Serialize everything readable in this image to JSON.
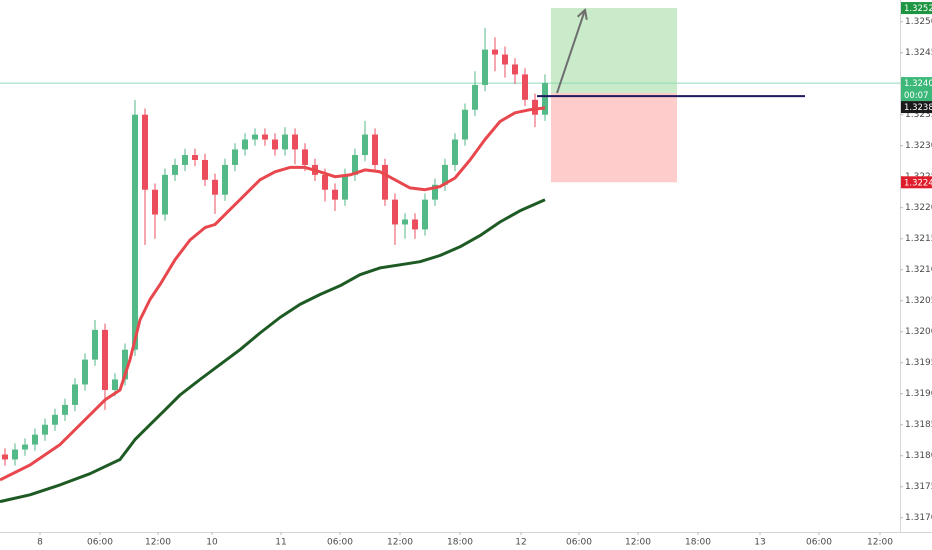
{
  "chart_data": {
    "type": "candlestick",
    "xlim": [
      0,
      90
    ],
    "ylim": [
      1.31677,
      1.32535
    ],
    "xticks": [
      {
        "value": 4,
        "label": "8"
      },
      {
        "value": 10,
        "label": "06:00"
      },
      {
        "value": 15.8,
        "label": "12:00"
      },
      {
        "value": 21.2,
        "label": "10"
      },
      {
        "value": 28.1,
        "label": "11"
      },
      {
        "value": 34,
        "label": "06:00"
      },
      {
        "value": 40,
        "label": "12:00"
      },
      {
        "value": 46,
        "label": "18:00"
      },
      {
        "value": 52.1,
        "label": "12"
      },
      {
        "value": 57.9,
        "label": "06:00"
      },
      {
        "value": 63.8,
        "label": "12:00"
      },
      {
        "value": 69.8,
        "label": "18:00"
      },
      {
        "value": 76,
        "label": "13"
      },
      {
        "value": 81.9,
        "label": "06:00"
      },
      {
        "value": 88,
        "label": "12:00"
      }
    ],
    "yticks": [
      {
        "value": 1.325,
        "label": "1.32500"
      },
      {
        "value": 1.3245,
        "label": "1.32450"
      },
      {
        "value": 1.324,
        "label": "1.32400"
      },
      {
        "value": 1.3235,
        "label": "1.32350"
      },
      {
        "value": 1.323,
        "label": "1.32300"
      },
      {
        "value": 1.3225,
        "label": "1.32250"
      },
      {
        "value": 1.322,
        "label": "1.32200"
      },
      {
        "value": 1.3215,
        "label": "1.32150"
      },
      {
        "value": 1.321,
        "label": "1.32100"
      },
      {
        "value": 1.3205,
        "label": "1.32050"
      },
      {
        "value": 1.32,
        "label": "1.32000"
      },
      {
        "value": 1.3195,
        "label": "1.31950"
      },
      {
        "value": 1.319,
        "label": "1.31900"
      },
      {
        "value": 1.3185,
        "label": "1.31850"
      },
      {
        "value": 1.318,
        "label": "1.31800"
      },
      {
        "value": 1.3175,
        "label": "1.31750"
      },
      {
        "value": 1.317,
        "label": "1.31700"
      }
    ],
    "up_color": "#53b987",
    "down_color": "#eb4d5c",
    "x": [
      0.5,
      1.5,
      2.5,
      3.5,
      4.5,
      5.5,
      6.5,
      7.5,
      8.5,
      9.5,
      10.5,
      11.5,
      12.5,
      13.5,
      14.5,
      15.5,
      16.5,
      17.5,
      18.5,
      19.5,
      20.5,
      21.5,
      22.5,
      23.5,
      24.5,
      25.5,
      26.5,
      27.5,
      28.5,
      29.5,
      30.5,
      31.5,
      32.5,
      33.5,
      34.5,
      35.5,
      36.5,
      37.5,
      38.5,
      39.5,
      40.5,
      41.5,
      42.5,
      43.5,
      44.5,
      45.5,
      46.5,
      47.5,
      48.5,
      49.5,
      50.5,
      51.5,
      52.5,
      53.5,
      54.5
    ],
    "open": [
      1.31802,
      1.31794,
      1.3181,
      1.31818,
      1.31834,
      1.3185,
      1.31866,
      1.31882,
      1.31915,
      1.31955,
      1.32003,
      1.31906,
      1.31923,
      1.31971,
      1.3235,
      1.32229,
      1.32189,
      1.32253,
      1.32269,
      1.32285,
      1.32277,
      1.32245,
      1.32221,
      1.32269,
      1.32294,
      1.3231,
      1.32318,
      1.3231,
      1.32294,
      1.32318,
      1.32294,
      1.32269,
      1.32253,
      1.32229,
      1.32213,
      1.32253,
      1.32285,
      1.32318,
      1.32269,
      1.32213,
      1.32173,
      1.32181,
      1.32165,
      1.32213,
      1.32237,
      1.32269,
      1.3231,
      1.32358,
      1.32398,
      1.32455,
      1.32447,
      1.32431,
      1.32415,
      1.32374,
      1.3235
    ],
    "high": [
      1.31812,
      1.3182,
      1.31828,
      1.31844,
      1.3186,
      1.31876,
      1.31892,
      1.31925,
      1.31965,
      1.32019,
      1.32013,
      1.31933,
      1.31981,
      1.32374,
      1.3236,
      1.32239,
      1.32263,
      1.32279,
      1.32295,
      1.32295,
      1.32287,
      1.32255,
      1.32279,
      1.32304,
      1.3232,
      1.32328,
      1.32328,
      1.3232,
      1.3233,
      1.32328,
      1.32304,
      1.32279,
      1.32263,
      1.32239,
      1.32263,
      1.32295,
      1.3234,
      1.32328,
      1.32279,
      1.32223,
      1.32191,
      1.32191,
      1.32223,
      1.32247,
      1.32279,
      1.3232,
      1.32368,
      1.3242,
      1.3249,
      1.32475,
      1.3246,
      1.32441,
      1.32425,
      1.32384,
      1.32415
    ],
    "low": [
      1.31784,
      1.31784,
      1.318,
      1.31808,
      1.31824,
      1.3184,
      1.31856,
      1.31872,
      1.31905,
      1.31945,
      1.31874,
      1.31896,
      1.31913,
      1.31961,
      1.3214,
      1.3215,
      1.32179,
      1.32243,
      1.32259,
      1.32267,
      1.32235,
      1.3219,
      1.32211,
      1.32259,
      1.32284,
      1.323,
      1.323,
      1.32284,
      1.32284,
      1.3227,
      1.32259,
      1.32243,
      1.3221,
      1.32195,
      1.32203,
      1.32243,
      1.32275,
      1.32259,
      1.32203,
      1.3214,
      1.3215,
      1.3215,
      1.32155,
      1.32203,
      1.32227,
      1.32259,
      1.323,
      1.32348,
      1.32388,
      1.3242,
      1.3241,
      1.324,
      1.32364,
      1.3233,
      1.3234
    ],
    "close": [
      1.31794,
      1.3181,
      1.31818,
      1.31834,
      1.3185,
      1.31866,
      1.31882,
      1.31915,
      1.31955,
      1.32003,
      1.31906,
      1.31923,
      1.31971,
      1.3235,
      1.32229,
      1.32189,
      1.32253,
      1.32269,
      1.32285,
      1.32277,
      1.32245,
      1.32221,
      1.32269,
      1.32294,
      1.3231,
      1.32318,
      1.3231,
      1.32294,
      1.32318,
      1.32294,
      1.32269,
      1.32253,
      1.32229,
      1.32213,
      1.32253,
      1.32285,
      1.32318,
      1.32269,
      1.32213,
      1.32173,
      1.32181,
      1.32165,
      1.32213,
      1.32237,
      1.32269,
      1.3231,
      1.32358,
      1.32398,
      1.32455,
      1.32447,
      1.32431,
      1.32415,
      1.32374,
      1.3235,
      1.32401
    ],
    "lines": [
      {
        "color": "#e8474d",
        "x": [
          0,
          3,
          6,
          9,
          10.5,
          12,
          13,
          14,
          15,
          16,
          17.5,
          19,
          20.5,
          21.5,
          23,
          24.5,
          26,
          27.5,
          29,
          30.5,
          32,
          33.5,
          35,
          36.5,
          38,
          39.5,
          41,
          42.5,
          44,
          45.5,
          47,
          48.5,
          50,
          51.5,
          53,
          54.5
        ],
        "values": [
          1.31761,
          1.31785,
          1.31818,
          1.31866,
          1.3189,
          1.31906,
          1.31955,
          1.32019,
          1.32052,
          1.32076,
          1.32116,
          1.32148,
          1.32168,
          1.32173,
          1.32197,
          1.32221,
          1.32245,
          1.32258,
          1.32265,
          1.32265,
          1.32258,
          1.3225,
          1.32253,
          1.32261,
          1.32258,
          1.32245,
          1.32232,
          1.32229,
          1.32234,
          1.32248,
          1.32277,
          1.3231,
          1.32339,
          1.32353,
          1.32358,
          1.32361
        ]
      },
      {
        "color": "#1e5b24",
        "x": [
          0,
          3,
          6,
          9,
          12,
          13.5,
          15,
          16.5,
          18,
          20,
          22,
          24,
          26,
          28,
          30,
          32,
          34,
          36,
          38,
          40,
          42,
          44,
          46,
          48,
          50,
          52,
          54.5
        ],
        "values": [
          1.31726,
          1.31737,
          1.31753,
          1.31771,
          1.31794,
          1.31826,
          1.3185,
          1.31874,
          1.31898,
          1.31923,
          1.31947,
          1.31971,
          1.31998,
          1.32023,
          1.32044,
          1.3206,
          1.32074,
          1.32092,
          1.32103,
          1.32108,
          1.32113,
          1.32123,
          1.32137,
          1.32155,
          1.32177,
          1.32195,
          1.32213
        ]
      }
    ],
    "price_line": {
      "value": 1.32401,
      "color": "#8fd9b6"
    },
    "hline": {
      "value": 1.3238,
      "x_start": 53.7,
      "x_end": 80.5,
      "color": "#1c1a5c"
    },
    "position": {
      "entry": 1.32385,
      "target": 1.32522,
      "stop": 1.32241,
      "x_start": 55.1,
      "x_end": 67.7,
      "target_color": "#c9ebc9",
      "stop_color": "#ffcccc"
    },
    "arrow": {
      "x": [
        55.7,
        58.5
      ],
      "values": [
        1.32385,
        1.32519
      ],
      "color": "#6e6e6e"
    },
    "price_tags": [
      {
        "value": 1.32522,
        "color": "#1e9641"
      },
      {
        "value": 1.32401,
        "color": "#3cb878",
        "countdown": "00:07"
      },
      {
        "value": 1.3238,
        "label": "1.32380",
        "color": "#1a1a1a"
      },
      {
        "value": 1.32241,
        "color": "#e01e2b"
      }
    ]
  }
}
